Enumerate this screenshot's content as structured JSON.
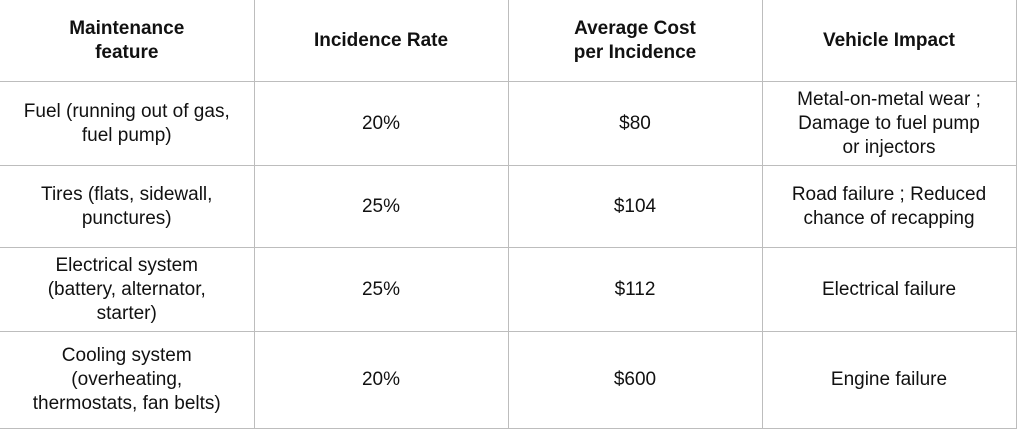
{
  "table": {
    "headers": [
      "Maintenance\nfeature",
      "Incidence Rate",
      "Average Cost\nper Incidence",
      "Vehicle Impact"
    ],
    "rows": [
      [
        "Fuel (running out of gas,\nfuel pump)",
        "20%",
        "$80",
        "Metal-on-metal wear ;\nDamage to fuel pump\nor injectors"
      ],
      [
        "Tires (flats, sidewall,\npunctures)",
        "25%",
        "$104",
        "Road failure ; Reduced\nchance of recapping"
      ],
      [
        "Electrical system\n(battery,  alternator,\nstarter)",
        "25%",
        "$112",
        "Electrical failure"
      ],
      [
        "Cooling system\n(overheating,\nthermostats, fan belts)",
        "20%",
        "$600",
        "Engine failure"
      ]
    ]
  }
}
